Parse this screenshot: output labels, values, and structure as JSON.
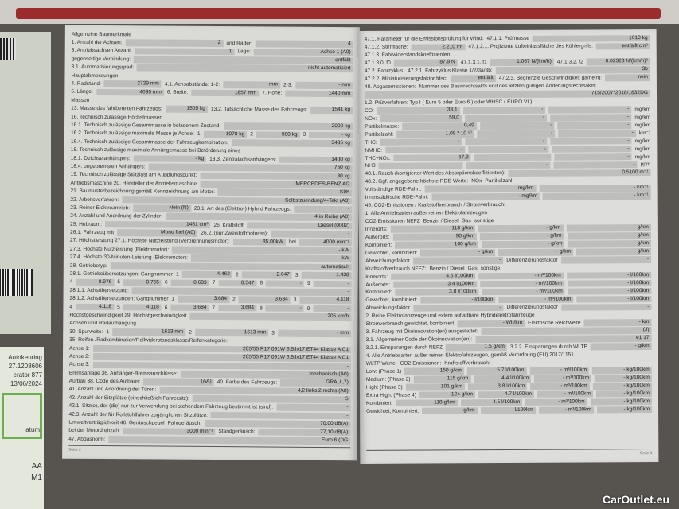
{
  "left_page": {
    "rows": [
      [
        "Allgemeine Baumerkmale"
      ],
      [
        "1. Anzahl der Achsen:",
        {
          "v": "2"
        },
        "und Räder:",
        {
          "v": "4"
        }
      ],
      [
        "3. Antriebsachsen   Anzahl:",
        {
          "v": "1"
        },
        "Lage:",
        {
          "v": "Achse 1 (A0)"
        }
      ],
      [
        "gegenseitige Verbindung:",
        {
          "v": "entfällt"
        }
      ],
      [
        "3.1. Automatisierungsgrad:",
        {
          "v": "nicht automatisiert"
        }
      ],
      [
        "Hauptabmessungen"
      ],
      [
        "4. Radstand:",
        {
          "v": "2729 mm"
        },
        "4.1. Achsabstände: 1-2:",
        {
          "v": "- mm"
        },
        "2-3:",
        {
          "v": "- mm"
        }
      ],
      [
        "5. Länge:",
        {
          "v": "4695 mm"
        },
        "6. Breite:",
        {
          "v": "1857 mm"
        },
        "7. Höhe:",
        {
          "v": "1440 mm"
        }
      ],
      [
        "Massen"
      ],
      [
        "13. Masse des fahrbereiten Fahrzeugs:",
        {
          "v": "1505 kg"
        },
        "13.2. Tatsächliche Masse des Fahrzeugs:",
        {
          "v": "1541 kg"
        }
      ],
      [
        "16. Technisch zulässige Höchstmassen"
      ],
      [
        "16.1. Technisch zulässige Gesamtmasse in beladenem Zustand:",
        {
          "v": "2000 kg"
        }
      ],
      [
        "16.2. Technisch zulässige maximale Masse je Achse:",
        "1",
        {
          "v": "1070 kg"
        },
        "2",
        {
          "v": "980 kg"
        },
        "3",
        {
          "v": "- kg"
        }
      ],
      [
        "16.4. Technisch zulässige Gesamtmasse der Fahrzeugkombination:",
        {
          "v": "3485 kg"
        }
      ],
      [
        "18. Technisch zulässige maximale Anhängemasse bei Beförderung eines"
      ],
      [
        "18.1. Deichselanhängers:",
        {
          "v": "- kg"
        },
        "18.3. Zentralachsanhängers:",
        {
          "v": "1400 kg"
        }
      ],
      [
        "18.4. ungebremsten Anhängers:",
        {
          "v": "750 kg"
        }
      ],
      [
        "19. Technisch zulässige Stützlast am Kupplungspunkt:",
        {
          "v": "80 kg"
        }
      ],
      [
        "Antriebsmaschine   20. Hersteller der Antriebsmaschine",
        {
          "v": "MERCEDES-BENZ AG"
        }
      ],
      [
        "21. Baumusterbezeichnung gemäß Kennzeichnung am Motor:",
        {
          "v": "K9K"
        }
      ],
      [
        "22. Arbeitsverfahren:",
        {
          "v": "Selbstzuendung/4-Takt (A3)"
        }
      ],
      [
        "23. Reiner Elektroantrieb:",
        {
          "v": "Nein (N)"
        },
        "23.1. Art des (Elektro-) Hybrid Fahrzeugs:",
        {
          "v": "-"
        }
      ],
      [
        "24. Anzahl und Anordnung der Zylinder:",
        {
          "v": "4 in Reihe (A0)"
        }
      ],
      [
        "25. Hubraum:",
        {
          "v": "1461 cm³"
        },
        "26. Kraftstoff",
        {
          "v": "Diesel (0002)"
        }
      ],
      [
        "26.1. Fahrzeug mit",
        {
          "v": "Mono fuel (A0)"
        },
        "26.2. (nur Zweistoffmotoren):",
        {
          "v": "-"
        }
      ],
      [
        "27. Höchstleistung   27.1. Höchste Nutzleistung (Verbrennungsmotor):",
        {
          "v": "85,00kW"
        },
        "bei",
        {
          "v": "4000 min⁻¹"
        }
      ],
      [
        "27.3. Höchste Nutzleistung (Elektromotor):",
        {
          "v": "- kW"
        }
      ],
      [
        "27.4. Höchste 30-Minuten-Leistung (Elektromotor):",
        {
          "v": "- kW"
        }
      ],
      [
        "28. Getriebetyp:",
        {
          "v": "automatisch"
        }
      ],
      [
        "28.1. Getriebeübersetzungen: Gangnummer",
        "1",
        {
          "v": "4.462"
        },
        "2",
        {
          "v": "2.647"
        },
        "3",
        {
          "v": "1.438"
        }
      ],
      [
        "4",
        {
          "v": "0.976"
        },
        "5",
        {
          "v": "0.755"
        },
        "6",
        {
          "v": "0.683"
        },
        "7",
        {
          "v": "0.547"
        },
        "8",
        {
          "v": "-"
        },
        "9",
        {
          "v": "-"
        }
      ],
      [
        "28.1.1. Achsübersetzung:",
        {
          "v": "-"
        }
      ],
      [
        "28.1.2. Achsübersetzungen: Gangnummer",
        "1",
        {
          "v": "3.684"
        },
        "2",
        {
          "v": "3.684"
        },
        "3",
        {
          "v": "4.118"
        }
      ],
      [
        "4",
        {
          "v": "4.118"
        },
        "5",
        {
          "v": "4.118"
        },
        "6",
        {
          "v": "3.684"
        },
        "7",
        {
          "v": "3.684"
        },
        "8",
        {
          "v": "-"
        },
        "9",
        {
          "v": "-"
        }
      ],
      [
        "Höchstgeschwindigkeit      29. Höchstgeschwindigkeit",
        {
          "v": "205 km/h"
        }
      ],
      [
        "Achsen und Radaufhängung"
      ],
      [
        "30. Spurweite:",
        "1",
        {
          "v": "1613 mm"
        },
        "2",
        {
          "v": "1613 mm"
        },
        "3",
        {
          "v": "- mm"
        }
      ],
      [
        "35. Reifen-/Radkombination/Rollwiderstandsklasse/Reifenkategorie:"
      ],
      [
        "Achse 1:",
        {
          "v": "205/55 R17 091W    6.5Jx17 ET44    Klasse A    C1"
        }
      ],
      [
        "Achse 2:",
        {
          "v": "205/55 R17 091W    6.5Jx17 ET44    Klasse A    C1"
        }
      ],
      [
        "Achse 3:",
        {
          "v": "-"
        }
      ],
      [
        "Bremsanlage      36. Anhänger-Bremsanschlüsse:",
        {
          "v": "mechanisch (A0)"
        }
      ],
      [
        "Aufbau  38. Code des Aufbaus:",
        {
          "v": "(AA)"
        },
        "40. Farbe des Fahrzeugs:",
        {
          "v": "GRAU ,7)"
        }
      ],
      [
        "41. Anzahl und Anordnung der Türen:",
        {
          "v": "4,2 links,2 rechts (A0)"
        }
      ],
      [
        "42. Anzahl der Sitzplätze (einschließlich Fahrersitz):",
        {
          "v": "5"
        }
      ],
      [
        "42.1. Sitz(e), der (die) nur zur Verwendung bei stehendem Fahrzeug bestimmt ist (sind):",
        {
          "v": "-"
        }
      ],
      [
        "42.3. Anzahl der für Rollstuhlfahrer zugänglichen Sitzplätze:",
        {
          "v": "-"
        }
      ],
      [
        "Umweltverträglichkeit      46. Geräuschpegel",
        "Fahrgeräusch:",
        {
          "v": "70,00 dB(A)"
        }
      ],
      [
        "bei der Motordrehzahl",
        {
          "v": "3000 min⁻¹"
        },
        "Standgeräusch:",
        {
          "v": "77,10 dB(A)"
        }
      ],
      [
        "47. Abgasnorm:",
        {
          "v": "Euro 6 (DG"
        }
      ]
    ],
    "footer": "Seite 2"
  },
  "right_page": {
    "rows": [
      [
        "47.1. Parameter für die Emissionsprüfung für Wind:",
        "47.1.1. Prüfmasse",
        {
          "v": "1610 kg"
        }
      ],
      [
        "47.1.2. Stirnfläche:",
        {
          "v": "2.210 m²"
        },
        "47.1.2.1. Projizierte Lufteinlassfläche des Kühlergrills:",
        {
          "v": "entfällt cm²"
        }
      ],
      [
        "47.1.3. Fahrwiderstandskoeffizienten"
      ],
      [
        "47.1.3.0. f0",
        {
          "v": "87.9 N"
        },
        "47.1.3.1. f1",
        {
          "v": "1.067 N/(km/h)"
        },
        "47.1.3.2. f2",
        {
          "v": "0.02328 N/(km/h)²"
        }
      ],
      [
        "47.2. Fahrzyklus:",
        "47.2.1. Fahrzyklus Klasse 1/2/3a/3b:",
        {
          "v": "3b"
        }
      ],
      [
        "47.2.2. Miniaturisierungsfaktor fdsc:",
        {
          "v": "entfällt"
        },
        "47.2.3. Begrenzte Geschwindigkeit (ja/nein):",
        {
          "v": "nein"
        }
      ],
      [
        "48. Abgasemissionen:",
        "Nummer des Basisrechtsakts und des letzten gültigen Änderungsrechtsakts:"
      ],
      [
        {
          "v": "715/2007*2018/1832DG"
        }
      ],
      [
        "1.2. Prüfverfahren: Typ I ( Euro 5 oder Euro 6 ) oder WHSC ( EURO VI )"
      ],
      [
        "CO:",
        {
          "v": "33,1"
        },
        {
          "v": "-"
        },
        {
          "v": "-"
        },
        "mg/km"
      ],
      [
        "NOx:",
        {
          "v": "59,0"
        },
        {
          "v": "-"
        },
        {
          "v": "-"
        },
        "mg/km"
      ],
      [
        "Partikelmasse:",
        {
          "v": "0,49"
        },
        {
          "v": "-"
        },
        {
          "v": "-"
        },
        "mg/km"
      ],
      [
        "Partikelzahl:",
        {
          "v": "1,09 * 10 ¹⁰"
        },
        {
          "v": "-"
        },
        {
          "v": "-"
        },
        "km⁻¹"
      ],
      [
        "THC:",
        {
          "v": "-"
        },
        {
          "v": "-"
        },
        {
          "v": "-"
        },
        "mg/km"
      ],
      [
        "NMHC:",
        {
          "v": "-"
        },
        {
          "v": "-"
        },
        {
          "v": "-"
        },
        "mg/km"
      ],
      [
        "THC+NOx:",
        {
          "v": "67,3"
        },
        {
          "v": "-"
        },
        {
          "v": "-"
        },
        "mg/km"
      ],
      [
        "NH3",
        {
          "v": "-"
        },
        {
          "v": "-"
        },
        {
          "v": "-"
        },
        "ppm"
      ],
      [
        "48.1. Rauch (korrigierter Wert des Absorptionskoeffizienten):",
        {
          "v": "0,5100 m⁻¹"
        }
      ],
      [
        "48.2. Ggf. angegebene höchste RDE-Werte:",
        "NOx",
        "Partikelzahl"
      ],
      [
        "Vollständige RDE-Fahrt:",
        {
          "v": "- mg/km"
        },
        {
          "v": "- km⁻¹"
        }
      ],
      [
        "Innerstädtische RDE-Fahrt:",
        {
          "v": "- mg/km"
        },
        {
          "v": "- km⁻¹"
        }
      ],
      [
        "49. CO2-Emissionen / Kraftstoffverbrauch / Stromverbrauch:"
      ],
      [
        "1. Alle Antriebsarten außer reinen Elektrofahrzeugen"
      ],
      [
        "CO2-Emissionen NEFZ",
        "Benzin / Diesel",
        "Gas",
        "sonstige"
      ],
      [
        "Innerorts:",
        {
          "v": "118 g/km"
        },
        {
          "v": "- g/km"
        },
        {
          "v": "- g/km"
        }
      ],
      [
        "Außerorts:",
        {
          "v": "90 g/km"
        },
        {
          "v": "- g/km"
        },
        {
          "v": "- g/km"
        }
      ],
      [
        "Kombiniert:",
        {
          "v": "100 g/km"
        },
        {
          "v": "- g/km"
        },
        {
          "v": "- g/km"
        }
      ],
      [
        "Gewichtet, kombiniert:",
        {
          "v": "- g/km"
        },
        {
          "v": "- g/km"
        },
        {
          "v": "- g/km"
        }
      ],
      [
        "Abweichungsfaktor",
        {
          "v": "-"
        },
        "Differenzierungsfaktor",
        {
          "v": "-"
        }
      ],
      [
        "Kraftstoffverbrauch NEFZ:",
        "Benzin / Diesel",
        "Gas",
        "sonstige"
      ],
      [
        "Innerorts:",
        {
          "v": "4.5 l/100km"
        },
        {
          "v": "- m³/100km"
        },
        {
          "v": "- l/100km"
        }
      ],
      [
        "Außerorts:",
        {
          "v": "3.4 l/100km"
        },
        {
          "v": "- m³/100km"
        },
        {
          "v": "- l/100km"
        }
      ],
      [
        "Kombiniert:",
        {
          "v": "3.8 l/100km"
        },
        {
          "v": "- m³/100km"
        },
        {
          "v": "- l/100km"
        }
      ],
      [
        "Gewichtet, kombiniert:",
        {
          "v": "- l/100km"
        },
        {
          "v": "- m³/100km"
        },
        {
          "v": "- l/100km"
        }
      ],
      [
        "Abweichungsfaktor",
        {
          "v": "-"
        },
        "Differenzierungsfaktor",
        {
          "v": "-"
        }
      ],
      [
        "2. Reine Elektrofahrzeuge und extern aufladbare Hybridelektrofahrzeuge"
      ],
      [
        "Stromverbrauch   gewichtet, kombiniert",
        {
          "v": "- Wh/km"
        },
        "Elektrische Reichweite",
        {
          "v": "- km"
        }
      ],
      [
        "3. Fahrzeug mit Ökoinnovation(en) ausgestattet:",
        {
          "v": "(J)"
        }
      ],
      [
        "3.1. Allgemeiner Code der Ökoinnovation(en):",
        {
          "v": "e1 17"
        }
      ],
      [
        "3.2.1. Einsparungen durch NEFZ",
        {
          "v": "1.5 g/km"
        },
        "3.2.2. Einsparungen durch WLTP",
        {
          "v": "- g/km"
        }
      ],
      [
        "4. Alle Antriebsarten außer reinen Elektrofahrzeugen, gemäß Verordnung (EU) 2017/1151"
      ],
      [
        "WLTP Werte:",
        "CO2-Emissionen:",
        "Kraftstoffverbrauch:"
      ],
      [
        "Low: (Phase 1)",
        {
          "v": "150 g/km"
        },
        {
          "v": "5.7 l/100km"
        },
        {
          "v": "- m³/100km"
        },
        {
          "v": "- kg/100km"
        }
      ],
      [
        "Medium: (Phase 2)",
        {
          "v": "115 g/km"
        },
        {
          "v": "4.4 l/100km"
        },
        {
          "v": "- m³/100km"
        },
        {
          "v": "- kg/100km"
        }
      ],
      [
        "High: (Phase 3)",
        {
          "v": "101 g/km"
        },
        {
          "v": "3.8 l/100km"
        },
        {
          "v": "- m³/100km"
        },
        {
          "v": "- kg/100km"
        }
      ],
      [
        "Extra High: (Phase 4)",
        {
          "v": "124 g/km"
        },
        {
          "v": "4.7 l/100km"
        },
        {
          "v": "- m³/100km"
        },
        {
          "v": "- kg/100km"
        }
      ],
      [
        "Kombiniert:",
        {
          "v": "118 g/km"
        },
        {
          "v": "4.5 l/100km"
        },
        {
          "v": "- m³/100km"
        },
        {
          "v": "- kg/100km"
        }
      ],
      [
        "Gewichtet, Kombiniert:",
        {
          "v": "- g/km"
        },
        {
          "v": "- l/100km"
        },
        {
          "v": "- m³/100km"
        },
        {
          "v": "- kg/100km"
        }
      ]
    ],
    "footer": "Seite 3"
  },
  "side_document": {
    "lines": [
      "Autokeuring",
      "27.1208606",
      "erator 877",
      "13/06/2024"
    ],
    "label": "atum",
    "codes": [
      "AA",
      "M1"
    ]
  },
  "watermark": "CarOutlet.eu",
  "colors": {
    "background": "#57534e",
    "page": "#dadad7",
    "field": "#bebebc",
    "band": "#9c2b2e"
  }
}
